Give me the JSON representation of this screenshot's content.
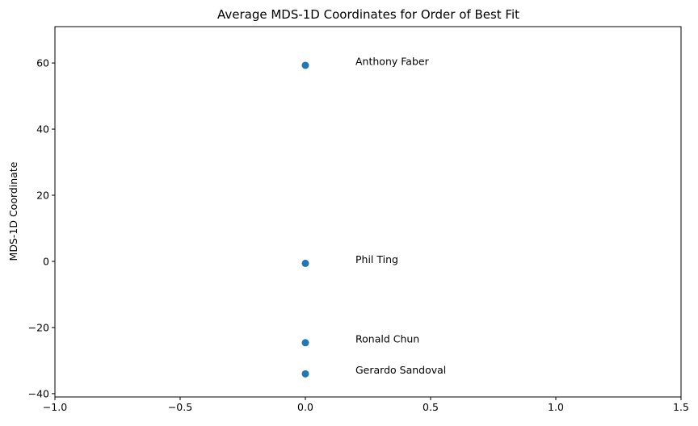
{
  "chart_data": {
    "type": "scatter",
    "title": "Average MDS-1D Coordinates for Order of Best Fit",
    "xlabel": "",
    "ylabel": "MDS-1D Coordinate",
    "xlim": [
      -1.0,
      1.5
    ],
    "ylim": [
      -41,
      71
    ],
    "xticks": [
      -1.0,
      -0.5,
      0.0,
      0.5,
      1.0,
      1.5
    ],
    "xtick_labels": [
      "−1.0",
      "−0.5",
      "0.0",
      "0.5",
      "1.0",
      "1.5"
    ],
    "yticks": [
      -40,
      -20,
      0,
      20,
      40,
      60
    ],
    "ytick_labels": [
      "−40",
      "−20",
      "0",
      "20",
      "40",
      "60"
    ],
    "grid": false,
    "marker_color": "#1f77b4",
    "points": [
      {
        "label": "Anthony Faber",
        "x": 0.0,
        "y": 59.3
      },
      {
        "label": "Phil Ting",
        "x": 0.0,
        "y": -0.6
      },
      {
        "label": "Ronald Chun",
        "x": 0.0,
        "y": -24.6
      },
      {
        "label": "Gerardo Sandoval",
        "x": 0.0,
        "y": -34.0
      }
    ],
    "annotation_dx": 0.2
  }
}
